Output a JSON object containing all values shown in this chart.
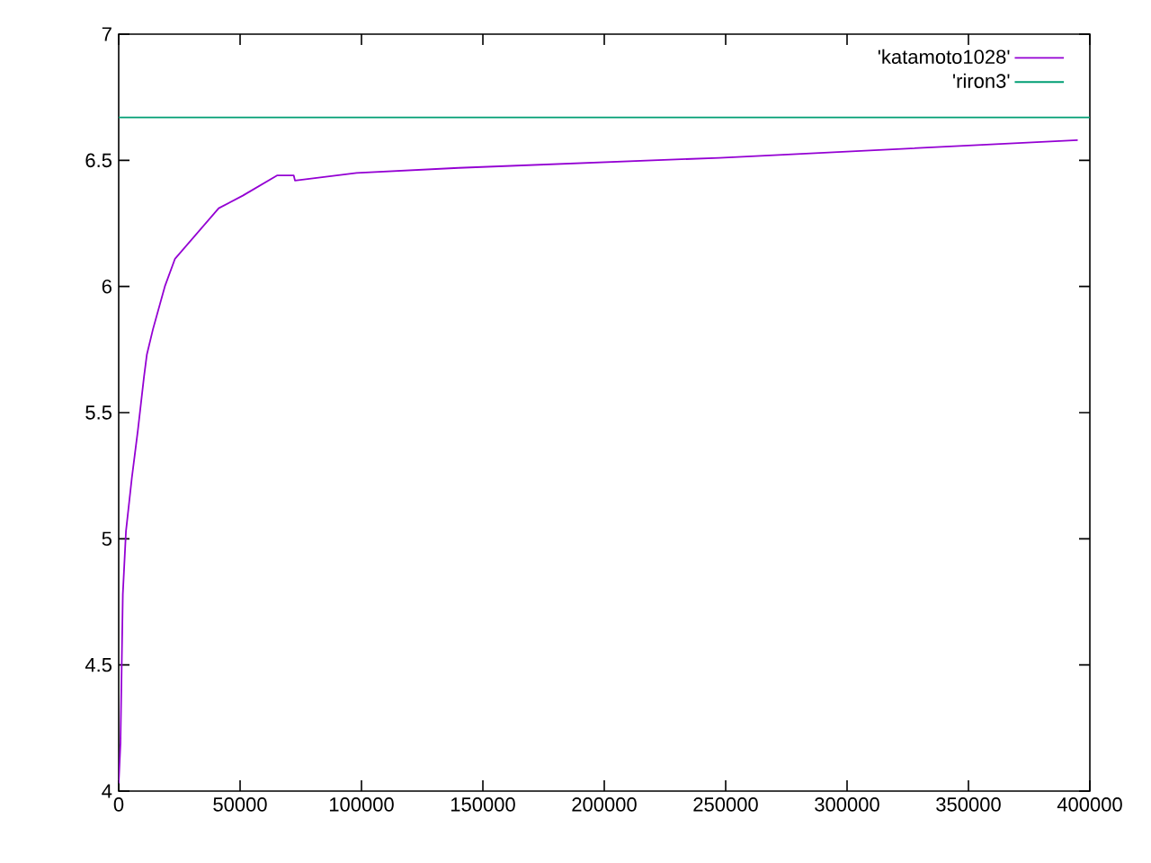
{
  "chart_data": {
    "type": "line",
    "xlim": [
      0,
      400000
    ],
    "ylim": [
      4,
      7
    ],
    "xticks": [
      0,
      50000,
      100000,
      150000,
      200000,
      250000,
      300000,
      350000,
      400000
    ],
    "yticks": [
      4,
      4.5,
      5,
      5.5,
      6,
      6.5,
      7
    ],
    "legend": "top right",
    "grid": false,
    "series": [
      {
        "name": "'katamoto1028'",
        "color": "#9400d3",
        "x": [
          0,
          740,
          1700,
          3000,
          5400,
          7900,
          10400,
          11600,
          14100,
          19000,
          23200,
          41200,
          51100,
          65200,
          72100,
          72600,
          98000,
          140000,
          247400,
          395000
        ],
        "values": [
          4.03,
          4.19,
          4.78,
          5.03,
          5.24,
          5.43,
          5.64,
          5.73,
          5.83,
          6.0,
          6.11,
          6.31,
          6.36,
          6.44,
          6.44,
          6.42,
          6.45,
          6.47,
          6.51,
          6.58
        ]
      },
      {
        "name": "'riron3'",
        "color": "#009e73",
        "x": [
          0,
          400000
        ],
        "values": [
          6.67,
          6.67
        ]
      }
    ]
  }
}
